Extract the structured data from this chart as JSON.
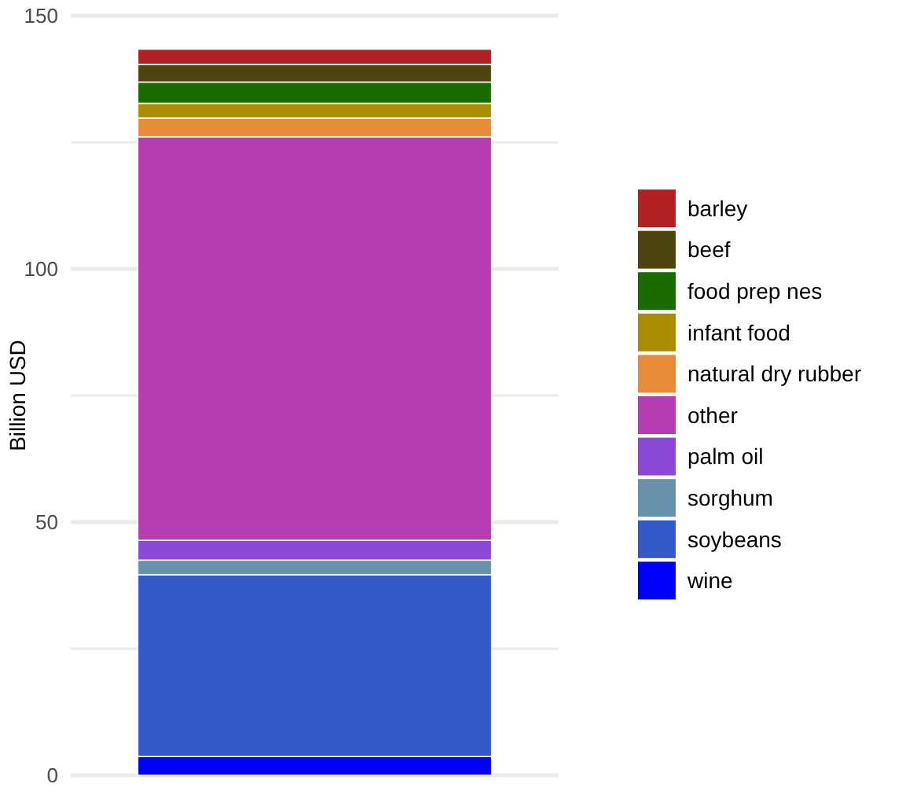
{
  "chart_data": {
    "type": "bar",
    "stacked": true,
    "ylabel": "Billion USD",
    "categories": [
      null
    ],
    "series": [
      {
        "name": "wine",
        "color": "#0000ff",
        "values": [
          3.7
        ]
      },
      {
        "name": "soybeans",
        "color": "#3359c8",
        "values": [
          35.9
        ]
      },
      {
        "name": "sorghum",
        "color": "#6891aa",
        "values": [
          2.9
        ]
      },
      {
        "name": "palm oil",
        "color": "#8b47d5",
        "values": [
          3.9
        ]
      },
      {
        "name": "other",
        "color": "#b43db4",
        "values": [
          79.7
        ]
      },
      {
        "name": "natural dry rubber",
        "color": "#e88a38",
        "values": [
          3.7
        ]
      },
      {
        "name": "infant food",
        "color": "#aa8c00",
        "values": [
          2.9
        ]
      },
      {
        "name": "food prep nes",
        "color": "#1b6c00",
        "values": [
          4.2
        ]
      },
      {
        "name": "beef",
        "color": "#4d4510",
        "values": [
          3.5
        ]
      },
      {
        "name": "barley",
        "color": "#b22222",
        "values": [
          3.0
        ]
      }
    ],
    "ylim": [
      0,
      150
    ],
    "yticks": [
      0,
      {
        "value": 25,
        "label": null
      },
      50,
      {
        "value": 75,
        "label": null
      },
      100,
      {
        "value": 125,
        "label": null
      },
      150
    ],
    "grid": "y",
    "legend": "right"
  }
}
